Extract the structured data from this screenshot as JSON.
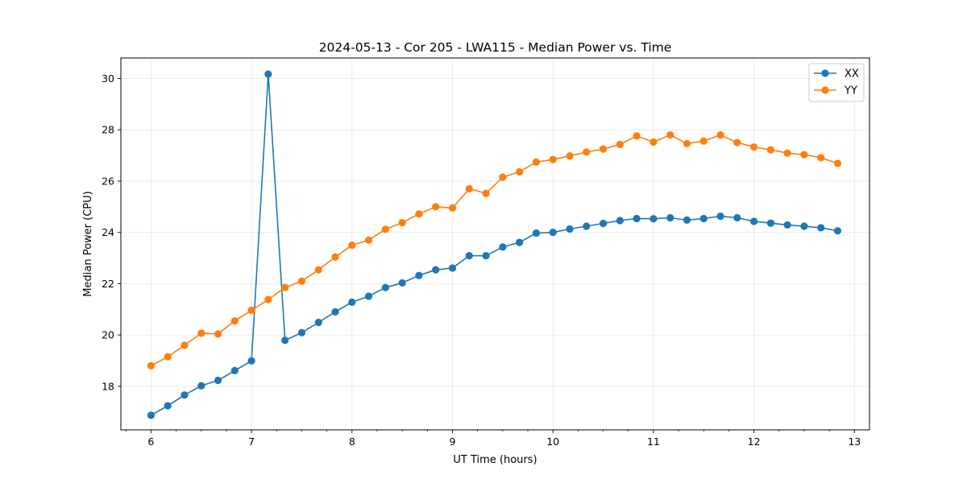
{
  "chart_data": {
    "type": "line",
    "title": "2024-05-13 - Cor 205 - LWA115 - Median Power vs. Time",
    "xlabel": "UT Time (hours)",
    "ylabel": "Median Power (CPU)",
    "xlim": [
      5.7,
      13.15
    ],
    "ylim": [
      16.3,
      30.8
    ],
    "xticks": [
      6,
      7,
      8,
      9,
      10,
      11,
      12,
      13
    ],
    "xtick_labels": [
      "6",
      "7",
      "8",
      "9",
      "10",
      "11",
      "12",
      "13"
    ],
    "yticks": [
      18,
      20,
      22,
      24,
      26,
      28,
      30
    ],
    "ytick_labels": [
      "18",
      "20",
      "22",
      "24",
      "26",
      "28",
      "30"
    ],
    "grid": true,
    "legend_position": "top-right",
    "x": [
      6.0,
      6.1667,
      6.3333,
      6.5,
      6.6667,
      6.8333,
      7.0,
      7.1667,
      7.3333,
      7.5,
      7.6667,
      7.8333,
      8.0,
      8.1667,
      8.3333,
      8.5,
      8.6667,
      8.8333,
      9.0,
      9.1667,
      9.3333,
      9.5,
      9.6667,
      9.8333,
      10.0,
      10.1667,
      10.3333,
      10.5,
      10.6667,
      10.8333,
      11.0,
      11.1667,
      11.3333,
      11.5,
      11.6667,
      11.8333,
      12.0,
      12.1667,
      12.3333,
      12.5,
      12.6667,
      12.8333
    ],
    "series": [
      {
        "name": "XX",
        "color": "#1f77b4",
        "values": [
          16.87,
          17.24,
          17.66,
          18.02,
          18.23,
          18.61,
          18.99,
          30.17,
          19.79,
          20.09,
          20.49,
          20.9,
          21.28,
          21.51,
          21.85,
          22.03,
          22.32,
          22.54,
          22.61,
          23.09,
          23.09,
          23.43,
          23.61,
          23.97,
          24.0,
          24.13,
          24.24,
          24.35,
          24.46,
          24.54,
          24.53,
          24.57,
          24.48,
          24.54,
          24.63,
          24.57,
          24.43,
          24.36,
          24.29,
          24.24,
          24.18,
          24.06
        ]
      },
      {
        "name": "YY",
        "color": "#ff7f0e",
        "values": [
          18.8,
          19.15,
          19.6,
          20.07,
          20.04,
          20.55,
          20.96,
          21.38,
          21.85,
          22.1,
          22.54,
          23.04,
          23.5,
          23.7,
          24.12,
          24.38,
          24.72,
          25.0,
          24.95,
          25.7,
          25.52,
          26.15,
          26.36,
          26.74,
          26.84,
          26.98,
          27.13,
          27.25,
          27.43,
          27.76,
          27.52,
          27.8,
          27.46,
          27.56,
          27.8,
          27.5,
          27.33,
          27.22,
          27.09,
          27.03,
          26.91,
          26.69
        ]
      }
    ]
  }
}
